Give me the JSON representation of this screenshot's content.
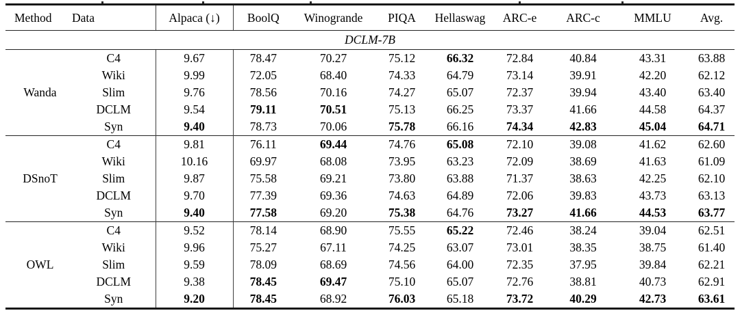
{
  "table": {
    "columns": [
      "Method",
      "Data",
      "Alpaca (↓)",
      "BoolQ",
      "Winogrande",
      "PIQA",
      "Hellaswag",
      "ARC-e",
      "ARC-c",
      "MMLU",
      "Avg."
    ],
    "section_label": "DCLM-7B",
    "colors": {
      "rule": "#1a1a1a",
      "text": "#000000",
      "background": "#ffffff"
    },
    "groups": [
      {
        "method": "Wanda",
        "rows": [
          {
            "data": "C4",
            "values": [
              "9.67",
              "78.47",
              "70.27",
              "75.12",
              "66.32",
              "72.84",
              "40.84",
              "43.31",
              "63.88"
            ],
            "bold": [
              4
            ]
          },
          {
            "data": "Wiki",
            "values": [
              "9.99",
              "72.05",
              "68.40",
              "74.33",
              "64.79",
              "73.14",
              "39.91",
              "42.20",
              "62.12"
            ],
            "bold": []
          },
          {
            "data": "Slim",
            "values": [
              "9.76",
              "78.56",
              "70.16",
              "74.27",
              "65.07",
              "72.37",
              "39.94",
              "43.40",
              "63.40"
            ],
            "bold": []
          },
          {
            "data": "DCLM",
            "values": [
              "9.54",
              "79.11",
              "70.51",
              "75.13",
              "66.25",
              "73.37",
              "41.66",
              "44.58",
              "64.37"
            ],
            "bold": [
              1,
              2
            ]
          },
          {
            "data": "Syn",
            "values": [
              "9.40",
              "78.73",
              "70.06",
              "75.78",
              "66.16",
              "74.34",
              "42.83",
              "45.04",
              "64.71"
            ],
            "bold": [
              0,
              3,
              5,
              6,
              7,
              8
            ]
          }
        ]
      },
      {
        "method": "DSnoT",
        "rows": [
          {
            "data": "C4",
            "values": [
              "9.81",
              "76.11",
              "69.44",
              "74.76",
              "65.08",
              "72.10",
              "39.08",
              "41.62",
              "62.60"
            ],
            "bold": [
              2,
              4
            ]
          },
          {
            "data": "Wiki",
            "values": [
              "10.16",
              "69.97",
              "68.08",
              "73.95",
              "63.23",
              "72.09",
              "38.69",
              "41.63",
              "61.09"
            ],
            "bold": []
          },
          {
            "data": "Slim",
            "values": [
              "9.87",
              "75.58",
              "69.21",
              "73.80",
              "63.88",
              "71.37",
              "38.63",
              "42.25",
              "62.10"
            ],
            "bold": []
          },
          {
            "data": "DCLM",
            "values": [
              "9.70",
              "77.39",
              "69.36",
              "74.63",
              "64.89",
              "72.06",
              "39.83",
              "43.73",
              "63.13"
            ],
            "bold": []
          },
          {
            "data": "Syn",
            "values": [
              "9.40",
              "77.58",
              "69.20",
              "75.38",
              "64.76",
              "73.27",
              "41.66",
              "44.53",
              "63.77"
            ],
            "bold": [
              0,
              1,
              3,
              5,
              6,
              7,
              8
            ]
          }
        ]
      },
      {
        "method": "OWL",
        "rows": [
          {
            "data": "C4",
            "values": [
              "9.52",
              "78.14",
              "68.90",
              "75.55",
              "65.22",
              "72.46",
              "38.24",
              "39.04",
              "62.51"
            ],
            "bold": [
              4
            ]
          },
          {
            "data": "Wiki",
            "values": [
              "9.96",
              "75.27",
              "67.11",
              "74.25",
              "63.07",
              "73.01",
              "38.35",
              "38.75",
              "61.40"
            ],
            "bold": []
          },
          {
            "data": "Slim",
            "values": [
              "9.59",
              "78.09",
              "68.69",
              "74.56",
              "64.00",
              "72.35",
              "37.95",
              "39.84",
              "62.21"
            ],
            "bold": []
          },
          {
            "data": "DCLM",
            "values": [
              "9.38",
              "78.45",
              "69.47",
              "75.10",
              "65.07",
              "72.76",
              "38.81",
              "40.73",
              "62.91"
            ],
            "bold": [
              1,
              2
            ]
          },
          {
            "data": "Syn",
            "values": [
              "9.20",
              "78.45",
              "68.92",
              "76.03",
              "65.18",
              "73.72",
              "40.29",
              "42.73",
              "63.61"
            ],
            "bold": [
              0,
              1,
              3,
              5,
              6,
              7,
              8
            ]
          }
        ]
      }
    ]
  }
}
